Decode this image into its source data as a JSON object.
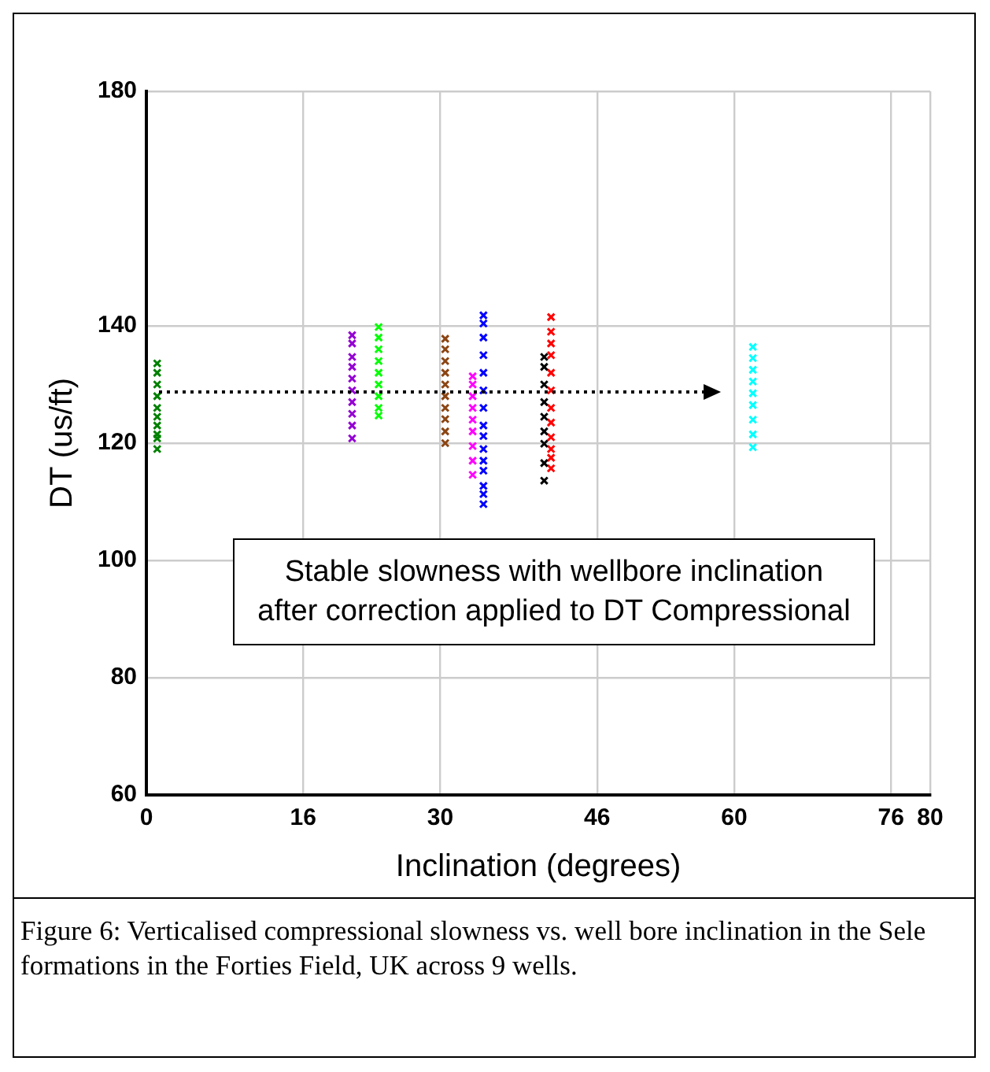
{
  "chart_data": {
    "type": "scatter",
    "xlabel": "Inclination (degrees)",
    "ylabel": "DT (us/ft)",
    "xlim": [
      0,
      80
    ],
    "xticks": [
      0,
      16,
      30,
      46,
      60,
      76,
      80
    ],
    "ylim": [
      60,
      180
    ],
    "yticks": [
      60,
      80,
      100,
      120,
      140,
      180
    ],
    "grid": true,
    "marker": "cross",
    "series": [
      {
        "color": "#008000",
        "x": [
          1.1,
          1.1,
          1.1,
          1.1,
          1.1,
          1.1,
          1.1,
          1.1,
          1.1,
          1.1
        ],
        "values": [
          133.6,
          132,
          130,
          128,
          126,
          124.5,
          123,
          121.5,
          120.8,
          119
        ]
      },
      {
        "color": "#9400d3",
        "x": [
          21,
          21,
          21,
          21,
          21,
          21,
          21,
          21,
          21,
          21
        ],
        "values": [
          138.4,
          137,
          134.7,
          133,
          131,
          129,
          127,
          125,
          123,
          120.8
        ]
      },
      {
        "color": "#00ff00",
        "x": [
          23.7,
          23.7,
          23.7,
          23.7,
          23.7,
          23.7,
          23.7,
          23.7,
          23.7
        ],
        "values": [
          139.8,
          138,
          136,
          134,
          132,
          130,
          128,
          126,
          124.7
        ]
      },
      {
        "color": "#8b4513",
        "x": [
          30.5,
          30.5,
          30.5,
          30.5,
          30.5,
          30.5,
          30.5,
          30.5,
          30.5,
          30.5
        ],
        "values": [
          137.8,
          136,
          134,
          132,
          130,
          128,
          126,
          124.1,
          122,
          120
        ]
      },
      {
        "color": "#ff00ff",
        "x": [
          33.3,
          33.3,
          33.3,
          33.3,
          33.3,
          33.3,
          33.3,
          33.3,
          33.3
        ],
        "values": [
          131.4,
          130,
          128,
          126,
          124,
          122,
          119.5,
          117,
          114.6
        ]
      },
      {
        "color": "#0000ff",
        "x": [
          34.4,
          34.4,
          34.4,
          34.4,
          34.4,
          34.4,
          34.4,
          34.4,
          34.4,
          34.4,
          34.4,
          34.4,
          34.4,
          34.4,
          34.4
        ],
        "values": [
          141.8,
          140.4,
          138,
          135,
          132,
          129,
          126,
          123,
          121.2,
          119,
          117,
          115.3,
          112.7,
          111.3,
          109.6
        ]
      },
      {
        "color": "#000000",
        "x": [
          40.6,
          40.6,
          40.6,
          40.6,
          40.6,
          40.6,
          40.6,
          40.6,
          40.6
        ],
        "values": [
          134.7,
          133,
          130,
          127,
          124.5,
          122,
          119.9,
          116.6,
          113.6
        ]
      },
      {
        "color": "#ff0000",
        "x": [
          41.3,
          41.3,
          41.3,
          41.3,
          41.3,
          41.3,
          41.3,
          41.3,
          41.3,
          41.3,
          41.3,
          41.3
        ],
        "values": [
          141.5,
          139,
          137,
          135,
          132,
          129,
          126,
          123.5,
          121,
          119,
          117.5,
          115.7
        ]
      },
      {
        "color": "#00ffff",
        "x": [
          61.9,
          61.9,
          61.9,
          61.9,
          61.9,
          61.9,
          61.9,
          61.9,
          61.9
        ],
        "values": [
          136.4,
          134.5,
          132.5,
          130.5,
          128.5,
          126.5,
          124,
          121.5,
          119.3
        ]
      }
    ],
    "annotations": [
      "Stable slowness with wellbore inclination after correction applied to DT Compressional",
      "Figure 6: Verticalised compressional slowness vs. well bore inclination in the Sele formations in the Forties Field, UK across 9 wells."
    ]
  }
}
